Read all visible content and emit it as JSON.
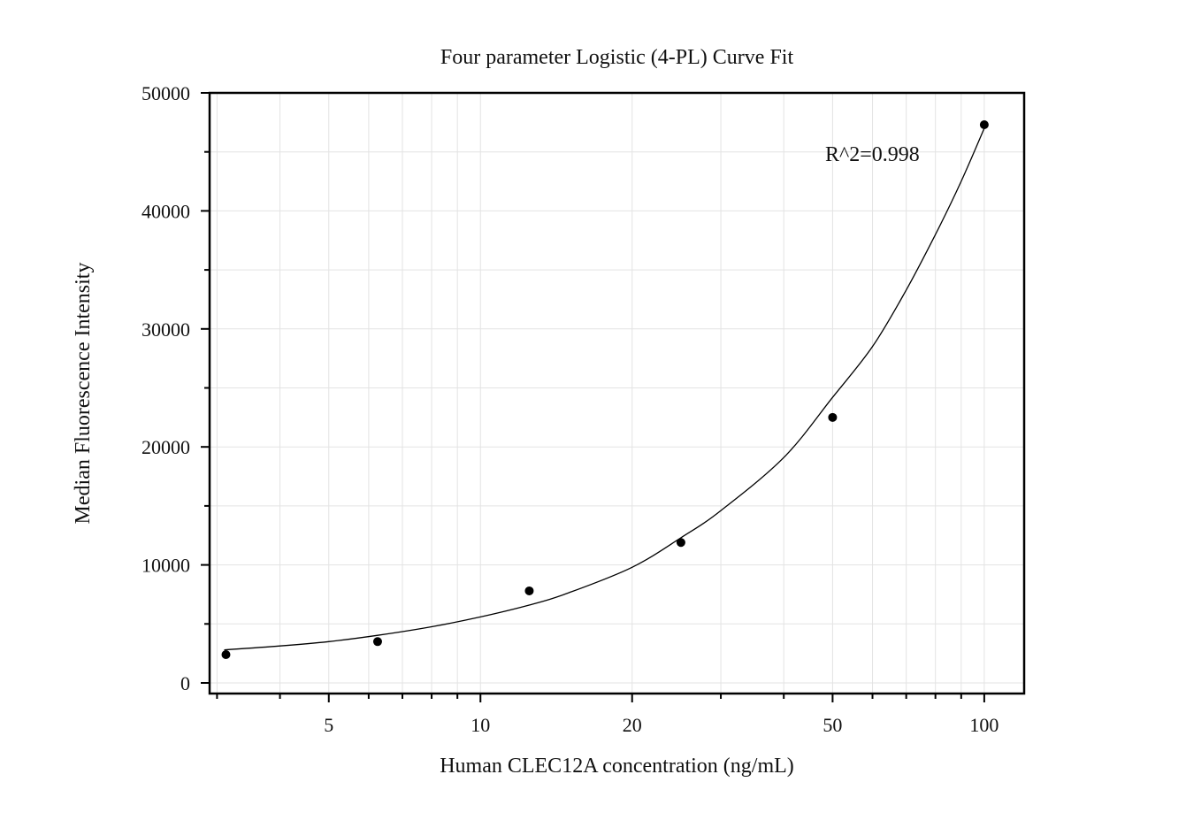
{
  "chart_data": {
    "type": "scatter",
    "title": "Four parameter Logistic (4-PL) Curve Fit",
    "xlabel": "Human CLEC12A concentration (ng/mL)",
    "ylabel": "Median Fluorescence Intensity",
    "x_scale": "log",
    "xlim": [
      2.9,
      120
    ],
    "ylim": [
      -900,
      50000
    ],
    "x_ticks": [
      5,
      10,
      20,
      50,
      100
    ],
    "x_tick_labels": [
      "5",
      "10",
      "20",
      "50",
      "100"
    ],
    "y_ticks": [
      0,
      10000,
      20000,
      30000,
      40000,
      50000
    ],
    "y_tick_labels": [
      "0",
      "10000",
      "20000",
      "30000",
      "40000",
      "50000"
    ],
    "grid": true,
    "legend": "none",
    "annotation": "R^2=0.998",
    "series": [
      {
        "type": "scatter",
        "x": [
          3.125,
          6.25,
          12.5,
          25,
          50,
          100
        ],
        "y": [
          2400,
          3500,
          7800,
          11900,
          22500,
          47300
        ]
      },
      {
        "type": "line",
        "x": [
          3.1,
          4,
          5,
          6.25,
          8,
          10,
          12.5,
          15,
          20,
          25,
          30,
          40,
          50,
          60,
          70,
          80,
          90,
          100
        ],
        "y": [
          2800,
          3130,
          3500,
          4030,
          4760,
          5590,
          6600,
          7650,
          9800,
          12300,
          14600,
          19100,
          24200,
          28500,
          33300,
          38000,
          42500,
          47000
        ]
      }
    ],
    "colors": {
      "points": "#000000",
      "curve": "#000000",
      "grid": "#e3e3e3",
      "frame": "#000000"
    }
  }
}
